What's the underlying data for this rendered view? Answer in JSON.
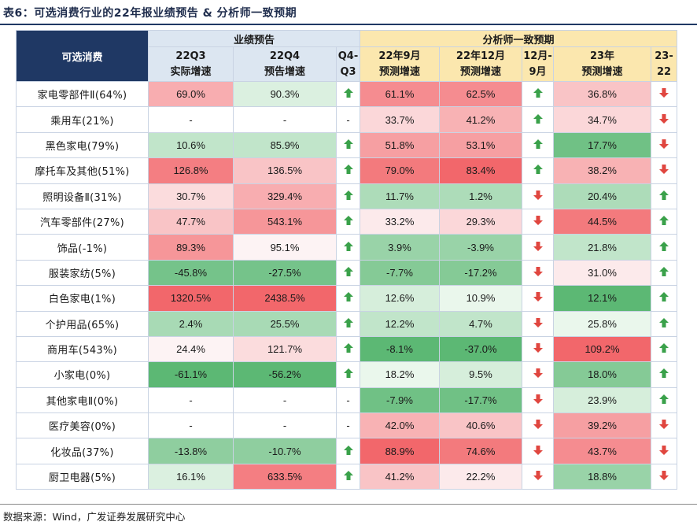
{
  "title": "表6：可选消费行业的22年报业绩预告 & 分析师一致预期",
  "footer": "数据来源：Wind，广发证券发展研究中心",
  "header": {
    "corner": "可选消费",
    "group_a": "业绩预告",
    "group_b": "分析师一致预期",
    "cols": [
      {
        "line1": "22Q3",
        "line2": "实际增速"
      },
      {
        "line1": "22Q4",
        "line2": "预告增速"
      },
      {
        "line1": "Q4-",
        "line2": "Q3"
      },
      {
        "line1": "22年9月",
        "line2": "预测增速"
      },
      {
        "line1": "22年12月",
        "line2": "预测增速"
      },
      {
        "line1": "12月-",
        "line2": "9月"
      },
      {
        "line1": "23年",
        "line2": "预测增速"
      },
      {
        "line1": "23-",
        "line2": "22"
      }
    ]
  },
  "colors": {
    "up_arrow": "#3aa14a",
    "down_arrow": "#e0463f"
  },
  "rows": [
    {
      "name": "家电零部件Ⅱ(64%)",
      "q3": "69.0%",
      "q4": "90.3%",
      "d1": "up",
      "sep": "61.1%",
      "dec": "62.5%",
      "d2": "up",
      "y23": "36.8%",
      "d3": "down"
    },
    {
      "name": "乘用车(21%)",
      "q3": "-",
      "q4": "-",
      "d1": "-",
      "sep": "33.7%",
      "dec": "41.2%",
      "d2": "up",
      "y23": "34.7%",
      "d3": "down"
    },
    {
      "name": "黑色家电(79%)",
      "q3": "10.6%",
      "q4": "85.9%",
      "d1": "up",
      "sep": "51.8%",
      "dec": "53.1%",
      "d2": "up",
      "y23": "17.7%",
      "d3": "down"
    },
    {
      "name": "摩托车及其他(51%)",
      "q3": "126.8%",
      "q4": "136.5%",
      "d1": "up",
      "sep": "79.0%",
      "dec": "83.4%",
      "d2": "up",
      "y23": "38.2%",
      "d3": "down"
    },
    {
      "name": "照明设备Ⅱ(31%)",
      "q3": "30.7%",
      "q4": "329.4%",
      "d1": "up",
      "sep": "11.7%",
      "dec": "1.2%",
      "d2": "down",
      "y23": "20.4%",
      "d3": "up"
    },
    {
      "name": "汽车零部件(27%)",
      "q3": "47.7%",
      "q4": "543.1%",
      "d1": "up",
      "sep": "33.2%",
      "dec": "29.3%",
      "d2": "down",
      "y23": "44.5%",
      "d3": "up"
    },
    {
      "name": "饰品(-1%)",
      "q3": "89.3%",
      "q4": "95.1%",
      "d1": "up",
      "sep": "3.9%",
      "dec": "-3.9%",
      "d2": "down",
      "y23": "21.8%",
      "d3": "up"
    },
    {
      "name": "服装家纺(5%)",
      "q3": "-45.8%",
      "q4": "-27.5%",
      "d1": "up",
      "sep": "-7.7%",
      "dec": "-17.2%",
      "d2": "down",
      "y23": "31.0%",
      "d3": "up"
    },
    {
      "name": "白色家电(1%)",
      "q3": "1320.5%",
      "q4": "2438.5%",
      "d1": "up",
      "sep": "12.6%",
      "dec": "10.9%",
      "d2": "down",
      "y23": "12.1%",
      "d3": "up"
    },
    {
      "name": "个护用品(65%)",
      "q3": "2.4%",
      "q4": "25.5%",
      "d1": "up",
      "sep": "12.2%",
      "dec": "4.7%",
      "d2": "down",
      "y23": "25.8%",
      "d3": "up"
    },
    {
      "name": "商用车(543%)",
      "q3": "24.4%",
      "q4": "121.7%",
      "d1": "up",
      "sep": "-8.1%",
      "dec": "-37.0%",
      "d2": "down",
      "y23": "109.2%",
      "d3": "up"
    },
    {
      "name": "小家电(0%)",
      "q3": "-61.1%",
      "q4": "-56.2%",
      "d1": "up",
      "sep": "18.2%",
      "dec": "9.5%",
      "d2": "down",
      "y23": "18.0%",
      "d3": "up"
    },
    {
      "name": "其他家电Ⅱ(0%)",
      "q3": "-",
      "q4": "-",
      "d1": "-",
      "sep": "-7.9%",
      "dec": "-17.7%",
      "d2": "down",
      "y23": "23.9%",
      "d3": "up"
    },
    {
      "name": "医疗美容(0%)",
      "q3": "-",
      "q4": "-",
      "d1": "-",
      "sep": "42.0%",
      "dec": "40.6%",
      "d2": "down",
      "y23": "39.2%",
      "d3": "down"
    },
    {
      "name": "化妆品(37%)",
      "q3": "-13.8%",
      "q4": "-10.7%",
      "d1": "up",
      "sep": "88.9%",
      "dec": "74.6%",
      "d2": "down",
      "y23": "43.7%",
      "d3": "down"
    },
    {
      "name": "厨卫电器(5%)",
      "q3": "16.1%",
      "q4": "633.5%",
      "d1": "up",
      "sep": "41.2%",
      "dec": "22.2%",
      "d2": "down",
      "y23": "18.8%",
      "d3": "down"
    }
  ]
}
